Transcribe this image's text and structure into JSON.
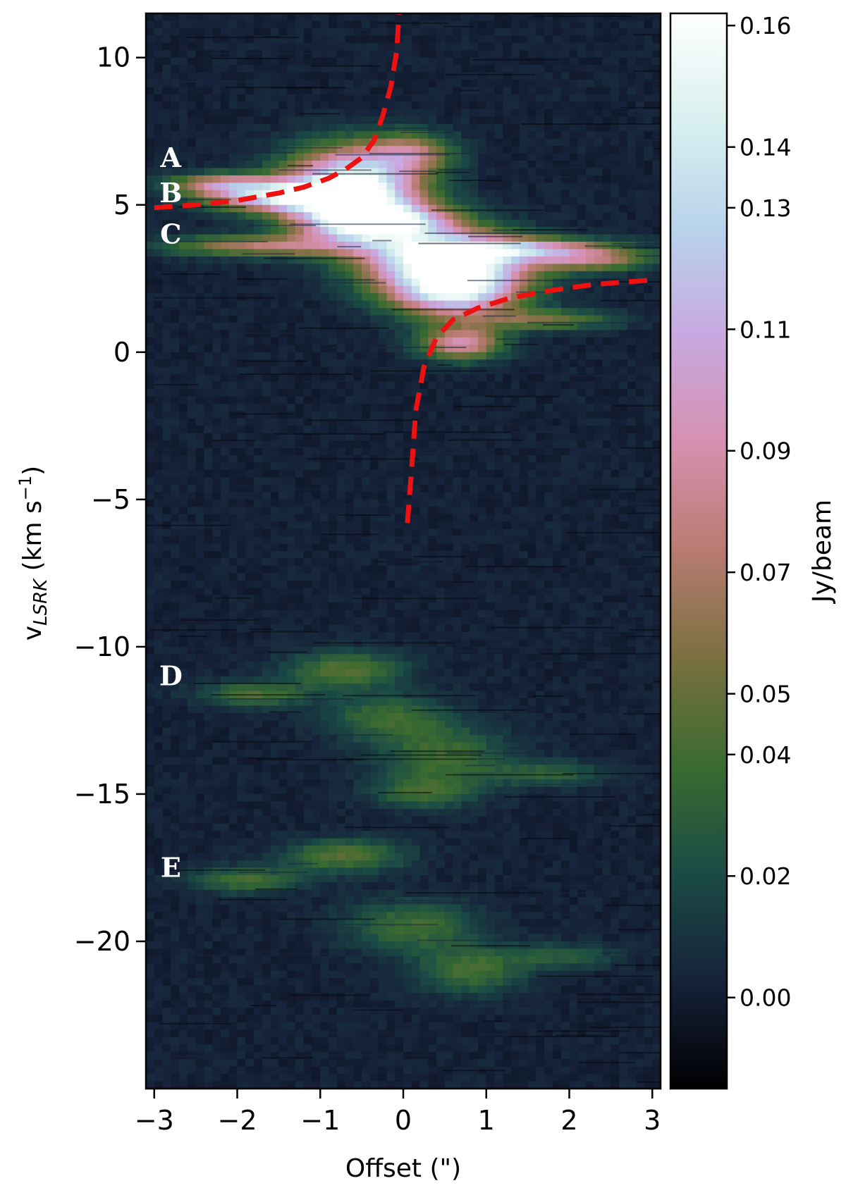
{
  "chart_data": {
    "type": "heatmap",
    "title": "",
    "xlabel": "Offset (\")",
    "ylabel_main": "v",
    "ylabel_sub": "LSRK",
    "ylabel_unit": " (km s",
    "ylabel_exp": "−1",
    "ylabel_close": ")",
    "xlim": [
      -3.1,
      3.1
    ],
    "ylim": [
      -25,
      11.5
    ],
    "xticks": [
      -3,
      -2,
      -1,
      0,
      1,
      2,
      3
    ],
    "xtick_labels": [
      "−3",
      "−2",
      "−1",
      "0",
      "1",
      "2",
      "3"
    ],
    "yticks": [
      10,
      5,
      0,
      -5,
      -10,
      -15,
      -20
    ],
    "ytick_labels": [
      "10",
      "5",
      "0",
      "−5",
      "−10",
      "−15",
      "−20"
    ],
    "colorbar": {
      "label": "Jy/beam",
      "range": [
        -0.015,
        0.162
      ],
      "ticks": [
        0.16,
        0.14,
        0.13,
        0.11,
        0.09,
        0.07,
        0.05,
        0.04,
        0.02,
        0.0
      ],
      "tick_labels": [
        "0.16",
        "0.14",
        "0.13",
        "0.11",
        "0.09",
        "0.07",
        "0.05",
        "0.04",
        "0.02",
        "0.00"
      ],
      "colormap": "cubehelix",
      "stops": [
        "#000000",
        "#16223a",
        "#1b4b45",
        "#3a6b30",
        "#7a7040",
        "#b87b70",
        "#d690b0",
        "#c8a8e0",
        "#b9d3ec",
        "#d8f0ee",
        "#ffffff"
      ]
    },
    "annotations": [
      {
        "text": "A",
        "x": -2.8,
        "y": 6.6
      },
      {
        "text": "B",
        "x": -2.8,
        "y": 5.4
      },
      {
        "text": "C",
        "x": -2.8,
        "y": 4.0
      },
      {
        "text": "D",
        "x": -2.8,
        "y": -11.0
      },
      {
        "text": "E",
        "x": -2.8,
        "y": -17.5
      }
    ],
    "curve": {
      "style": "dashed",
      "color": "#ee1111",
      "left_branch": [
        [
          -3.0,
          4.9
        ],
        [
          -2.5,
          5.0
        ],
        [
          -2.0,
          5.15
        ],
        [
          -1.5,
          5.4
        ],
        [
          -1.2,
          5.6
        ],
        [
          -0.9,
          5.9
        ],
        [
          -0.7,
          6.2
        ],
        [
          -0.5,
          6.6
        ],
        [
          -0.35,
          7.2
        ],
        [
          -0.25,
          8.0
        ],
        [
          -0.15,
          9.0
        ],
        [
          -0.08,
          10.2
        ],
        [
          -0.05,
          11.5
        ]
      ],
      "right_branch": [
        [
          0.05,
          -5.8
        ],
        [
          0.1,
          -4.0
        ],
        [
          0.15,
          -2.0
        ],
        [
          0.25,
          -0.5
        ],
        [
          0.4,
          0.5
        ],
        [
          0.6,
          1.1
        ],
        [
          0.9,
          1.5
        ],
        [
          1.3,
          1.85
        ],
        [
          1.8,
          2.1
        ],
        [
          2.3,
          2.3
        ],
        [
          3.0,
          2.45
        ]
      ]
    },
    "emission_components": [
      {
        "x": -0.6,
        "y": 5.6,
        "sx": 0.55,
        "sy": 0.9,
        "amp": 0.17
      },
      {
        "x": -1.5,
        "y": 5.3,
        "sx": 0.6,
        "sy": 0.35,
        "amp": 0.12
      },
      {
        "x": -2.2,
        "y": 5.7,
        "sx": 0.45,
        "sy": 0.25,
        "amp": 0.07
      },
      {
        "x": -0.3,
        "y": 4.4,
        "sx": 0.6,
        "sy": 0.45,
        "amp": 0.15
      },
      {
        "x": 0.5,
        "y": 3.2,
        "sx": 0.7,
        "sy": 0.6,
        "amp": 0.16
      },
      {
        "x": 0.6,
        "y": 2.1,
        "sx": 0.55,
        "sy": 0.6,
        "amp": 0.15
      },
      {
        "x": 1.6,
        "y": 3.5,
        "sx": 0.75,
        "sy": 0.25,
        "amp": 0.08
      },
      {
        "x": 2.3,
        "y": 3.1,
        "sx": 0.5,
        "sy": 0.25,
        "amp": 0.06
      },
      {
        "x": -1.7,
        "y": 3.6,
        "sx": 0.8,
        "sy": 0.25,
        "amp": 0.07
      },
      {
        "x": 0.7,
        "y": 0.3,
        "sx": 0.35,
        "sy": 0.4,
        "amp": 0.09
      },
      {
        "x": 1.7,
        "y": 1.1,
        "sx": 0.6,
        "sy": 0.25,
        "amp": 0.05
      },
      {
        "x": 0.1,
        "y": 6.8,
        "sx": 0.35,
        "sy": 0.45,
        "amp": 0.06
      },
      {
        "x": -0.7,
        "y": -10.8,
        "sx": 0.5,
        "sy": 0.45,
        "amp": 0.045
      },
      {
        "x": -1.8,
        "y": -11.6,
        "sx": 0.45,
        "sy": 0.3,
        "amp": 0.04
      },
      {
        "x": -0.2,
        "y": -12.4,
        "sx": 0.5,
        "sy": 0.55,
        "amp": 0.035
      },
      {
        "x": 0.5,
        "y": -13.8,
        "sx": 0.55,
        "sy": 0.8,
        "amp": 0.038
      },
      {
        "x": 1.8,
        "y": -14.3,
        "sx": 0.45,
        "sy": 0.3,
        "amp": 0.03
      },
      {
        "x": 0.2,
        "y": -15.0,
        "sx": 0.4,
        "sy": 0.35,
        "amp": 0.03
      },
      {
        "x": -0.7,
        "y": -17.1,
        "sx": 0.5,
        "sy": 0.4,
        "amp": 0.045
      },
      {
        "x": -1.9,
        "y": -17.9,
        "sx": 0.45,
        "sy": 0.3,
        "amp": 0.04
      },
      {
        "x": 0.1,
        "y": -19.5,
        "sx": 0.55,
        "sy": 0.6,
        "amp": 0.038
      },
      {
        "x": 0.8,
        "y": -21.0,
        "sx": 0.45,
        "sy": 0.55,
        "amp": 0.04
      },
      {
        "x": 1.9,
        "y": -20.5,
        "sx": 0.45,
        "sy": 0.3,
        "amp": 0.028
      }
    ],
    "grid": false
  }
}
